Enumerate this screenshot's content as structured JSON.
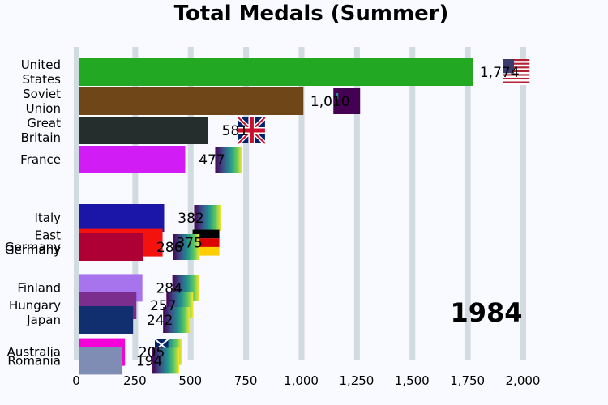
{
  "chart_data": {
    "type": "bar",
    "orientation": "horizontal",
    "title": "Total Medals (Summer)",
    "year_label": "1984",
    "xlim": [
      0,
      2050
    ],
    "x_ticks": [
      0,
      250,
      500,
      750,
      1000,
      1250,
      1500,
      1750,
      2000
    ],
    "x_tick_labels": [
      "0",
      "250",
      "500",
      "750",
      "1,000",
      "1,250",
      "1,500",
      "1,750",
      "2,000"
    ],
    "grid": true,
    "categories": [
      "United States",
      "Soviet Union",
      "Great Britain",
      "France",
      "Italy",
      "East Germany",
      "West Germany",
      "Finland",
      "Hungary",
      "Japan",
      "Australia",
      "Romania"
    ],
    "category_labels": [
      [
        "United",
        "States"
      ],
      [
        "Soviet",
        "Union"
      ],
      [
        "Great",
        "Britain"
      ],
      [
        "France"
      ],
      [
        "Italy"
      ],
      [
        "East",
        "Germany"
      ],
      [
        "Germany"
      ],
      [
        "Finland"
      ],
      [
        "Hungary"
      ],
      [
        "Japan"
      ],
      [
        "Australia"
      ],
      [
        "Romania"
      ]
    ],
    "values": [
      1774,
      1010,
      581,
      477,
      382,
      375,
      286,
      284,
      257,
      242,
      205,
      194
    ],
    "value_labels": [
      "1,774",
      "1,010",
      "581",
      "477",
      "382",
      "375",
      "286",
      "284",
      "257",
      "242",
      "205",
      "194"
    ],
    "colors": [
      "#22a822",
      "#6e4617",
      "#262d2d",
      "#d21cf6",
      "#1c16a8",
      "#f3120e",
      "#ae0034",
      "#a874ee",
      "#7b2e8e",
      "#112e6e",
      "#f400d8",
      "#7f8cb4"
    ],
    "flags": [
      "usa-flag",
      "soviet-flag",
      "uk-flag",
      "viridis-flag",
      "viridis-flag",
      "germany-flag",
      "viridis-flag",
      "viridis-flag",
      "viridis-flag",
      "viridis-flag",
      "australia-flag",
      "viridis-flag"
    ],
    "rank_positions": [
      1,
      2,
      3,
      4,
      6,
      6.85,
      7,
      8.4,
      9,
      9.5,
      10.6,
      10.9
    ]
  }
}
